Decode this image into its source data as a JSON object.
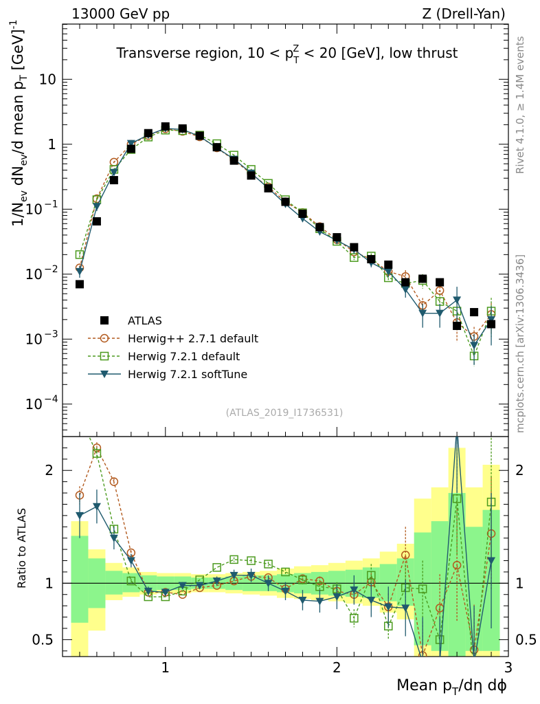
{
  "chart_data": {
    "type": "scatter",
    "header_left": "13000 GeV pp",
    "header_right": "Z (Drell-Yan)",
    "title": "Transverse region, 10 < p_T^Z < 20 [GeV], low thrust",
    "title_parts": {
      "pre": "Transverse region, 10 < p",
      "sup": "Z",
      "sub": "T",
      "post": " < 20 [GeV], low thrust"
    },
    "ylabel": "1/N_ev dN_ev/d mean p_T [GeV]^-1",
    "ylabel_parts": {
      "a": "1/N",
      "a_sub": "ev",
      "b": " dN",
      "b_sub": "ev",
      "c": "/d mean p",
      "c_sub": "T",
      "d": " [GeV]",
      "d_sup": "-1"
    },
    "ratio_ylabel": "Ratio to ATLAS",
    "xlabel": "Mean p_T/dη dϕ",
    "xlabel_parts": {
      "a": "Mean p",
      "a_sub": "T",
      "b": "/dη dϕ"
    },
    "side_label_top": "Rivet 4.1.0, ≥ 1.4M events",
    "side_label_bottom": "mcplots.cern.ch [arXiv:1306.3436]",
    "watermark": "(ATLAS_2019_I1736531)",
    "xlim": [
      0.4,
      3.0
    ],
    "ylim_log": [
      -4.5,
      1.85
    ],
    "ratio_ylim": [
      0.35,
      2.3
    ],
    "x_ticks": [
      {
        "value": 1,
        "label": "1"
      },
      {
        "value": 2,
        "label": "2"
      },
      {
        "value": 3,
        "label": "3"
      }
    ],
    "y_ticks": [
      {
        "exp": 1,
        "label": "10",
        "sup": ""
      },
      {
        "exp": 0,
        "label": "1",
        "sup": ""
      },
      {
        "exp": -1,
        "label": "10",
        "sup": "−1"
      },
      {
        "exp": -2,
        "label": "10",
        "sup": "−2"
      },
      {
        "exp": -3,
        "label": "10",
        "sup": "−3"
      },
      {
        "exp": -4,
        "label": "10",
        "sup": "−4"
      }
    ],
    "ratio_ticks": [
      {
        "value": 0.5,
        "label": "0.5"
      },
      {
        "value": 1,
        "label": "1"
      },
      {
        "value": 2,
        "label": "2"
      }
    ],
    "x": [
      0.5,
      0.6,
      0.7,
      0.8,
      0.9,
      1.0,
      1.1,
      1.2,
      1.3,
      1.4,
      1.5,
      1.6,
      1.7,
      1.8,
      1.9,
      2.0,
      2.1,
      2.2,
      2.3,
      2.4,
      2.5,
      2.6,
      2.7,
      2.8,
      2.9
    ],
    "bin_edges": [
      0.45,
      0.55,
      0.65,
      0.75,
      0.85,
      0.95,
      1.05,
      1.15,
      1.25,
      1.35,
      1.45,
      1.55,
      1.65,
      1.75,
      1.85,
      1.95,
      2.05,
      2.15,
      2.25,
      2.35,
      2.45,
      2.55,
      2.65,
      2.75,
      2.85,
      2.95
    ],
    "band_yellow": [
      [
        0.35,
        1.55
      ],
      [
        0.58,
        1.3
      ],
      [
        0.85,
        1.18
      ],
      [
        0.88,
        1.14
      ],
      [
        0.9,
        1.1
      ],
      [
        0.91,
        1.09
      ],
      [
        0.91,
        1.09
      ],
      [
        0.92,
        1.08
      ],
      [
        0.92,
        1.08
      ],
      [
        0.91,
        1.09
      ],
      [
        0.9,
        1.1
      ],
      [
        0.89,
        1.11
      ],
      [
        0.87,
        1.13
      ],
      [
        0.86,
        1.15
      ],
      [
        0.85,
        1.16
      ],
      [
        0.84,
        1.18
      ],
      [
        0.82,
        1.2
      ],
      [
        0.8,
        1.22
      ],
      [
        0.74,
        1.28
      ],
      [
        0.68,
        1.35
      ],
      [
        0.35,
        1.75
      ],
      [
        0.35,
        1.85
      ],
      [
        0.35,
        2.2
      ],
      [
        0.35,
        1.85
      ],
      [
        0.35,
        2.05
      ]
    ],
    "band_green": [
      [
        0.65,
        1.42
      ],
      [
        0.78,
        1.22
      ],
      [
        0.9,
        1.11
      ],
      [
        0.92,
        1.09
      ],
      [
        0.93,
        1.07
      ],
      [
        0.94,
        1.06
      ],
      [
        0.94,
        1.06
      ],
      [
        0.95,
        1.05
      ],
      [
        0.95,
        1.05
      ],
      [
        0.94,
        1.06
      ],
      [
        0.93,
        1.07
      ],
      [
        0.93,
        1.07
      ],
      [
        0.92,
        1.08
      ],
      [
        0.91,
        1.09
      ],
      [
        0.9,
        1.1
      ],
      [
        0.89,
        1.11
      ],
      [
        0.88,
        1.12
      ],
      [
        0.87,
        1.14
      ],
      [
        0.84,
        1.17
      ],
      [
        0.8,
        1.22
      ],
      [
        0.45,
        1.45
      ],
      [
        0.4,
        1.55
      ],
      [
        0.35,
        1.8
      ],
      [
        0.4,
        1.5
      ],
      [
        0.4,
        1.65
      ]
    ],
    "series": [
      {
        "name": "ATLAS",
        "color": "#000000",
        "style": "square-filled",
        "values": [
          0.007,
          0.065,
          0.28,
          0.85,
          1.48,
          1.88,
          1.75,
          1.35,
          0.9,
          0.56,
          0.33,
          0.21,
          0.13,
          0.085,
          0.053,
          0.037,
          0.026,
          0.017,
          0.014,
          0.0075,
          0.0085,
          0.0075,
          0.0016,
          0.0026,
          0.0017
        ],
        "ratio": [
          1,
          1,
          1,
          1,
          1,
          1,
          1,
          1,
          1,
          1,
          1,
          1,
          1,
          1,
          1,
          1,
          1,
          1,
          1,
          1,
          1,
          1,
          1,
          1,
          1
        ],
        "ratio_err": [
          0,
          0,
          0,
          0,
          0,
          0,
          0,
          0,
          0,
          0,
          0,
          0,
          0,
          0,
          0,
          0,
          0,
          0,
          0,
          0,
          0,
          0,
          0,
          0,
          0
        ]
      },
      {
        "name": "Herwig++ 2.7.1 default",
        "color": "#b25a1e",
        "style": "circle-open-dashed",
        "values": [
          0.0125,
          0.145,
          0.53,
          1.0,
          1.36,
          1.73,
          1.58,
          1.3,
          0.88,
          0.57,
          0.35,
          0.22,
          0.13,
          0.089,
          0.054,
          0.034,
          0.022,
          0.017,
          0.011,
          0.0092,
          0.0033,
          0.0056,
          0.0018,
          0.0011,
          0.0024
        ],
        "ratio": [
          1.78,
          2.2,
          1.9,
          1.27,
          0.92,
          0.92,
          0.9,
          0.96,
          0.98,
          1.02,
          1.06,
          1.05,
          0.95,
          1.04,
          1.02,
          0.93,
          0.9,
          1.01,
          0.79,
          1.25,
          0.36,
          0.78,
          1.16,
          0.41,
          1.44
        ],
        "ratio_err": [
          0.08,
          0.05,
          0.03,
          0.02,
          0.01,
          0.01,
          0.01,
          0.01,
          0.01,
          0.01,
          0.01,
          0.02,
          0.02,
          0.03,
          0.04,
          0.05,
          0.07,
          0.08,
          0.12,
          0.25,
          0.3,
          0.3,
          0.5,
          0.4,
          0.5
        ]
      },
      {
        "name": "Herwig 7.2.1 default",
        "color": "#4b9a1e",
        "style": "square-open-dashed",
        "values": [
          0.02,
          0.14,
          0.41,
          0.83,
          1.29,
          1.65,
          1.62,
          1.38,
          1.02,
          0.68,
          0.41,
          0.25,
          0.14,
          0.088,
          0.05,
          0.032,
          0.018,
          0.019,
          0.0088,
          0.0072,
          0.008,
          0.0038,
          0.0027,
          0.00055,
          0.0027
        ],
        "ratio": [
          2.7,
          2.15,
          1.48,
          1.02,
          0.88,
          0.88,
          0.93,
          1.03,
          1.14,
          1.21,
          1.2,
          1.17,
          1.1,
          1.03,
          0.97,
          0.95,
          0.69,
          1.07,
          0.62,
          0.96,
          0.95,
          0.5,
          1.75,
          0.21,
          1.72
        ],
        "ratio_err": [
          0.1,
          0.05,
          0.03,
          0.02,
          0.01,
          0.01,
          0.01,
          0.01,
          0.01,
          0.02,
          0.02,
          0.02,
          0.03,
          0.04,
          0.05,
          0.06,
          0.08,
          0.1,
          0.12,
          0.2,
          0.25,
          0.3,
          0.5,
          0.3,
          0.6
        ]
      },
      {
        "name": "Herwig 7.2.1 softTune",
        "color": "#1f5a6e",
        "style": "triangle-down-solid",
        "values": [
          0.011,
          0.11,
          0.37,
          1.03,
          1.39,
          1.75,
          1.69,
          1.32,
          0.88,
          0.59,
          0.36,
          0.21,
          0.12,
          0.072,
          0.045,
          0.033,
          0.024,
          0.015,
          0.011,
          0.0058,
          0.0025,
          0.0025,
          0.004,
          0.0008,
          0.002
        ],
        "ratio": [
          1.6,
          1.68,
          1.4,
          1.2,
          0.93,
          0.92,
          0.98,
          0.98,
          1.02,
          1.07,
          1.07,
          1.0,
          0.93,
          0.85,
          0.84,
          0.88,
          0.94,
          0.85,
          0.79,
          0.78,
          0.3,
          0.3,
          2.4,
          0.3,
          1.2
        ],
        "ratio_err": [
          0.2,
          0.15,
          0.1,
          0.06,
          0.04,
          0.03,
          0.03,
          0.03,
          0.04,
          0.05,
          0.06,
          0.07,
          0.08,
          0.09,
          0.1,
          0.11,
          0.13,
          0.15,
          0.18,
          0.25,
          0.4,
          0.4,
          0.6,
          0.5,
          0.6
        ]
      }
    ]
  }
}
